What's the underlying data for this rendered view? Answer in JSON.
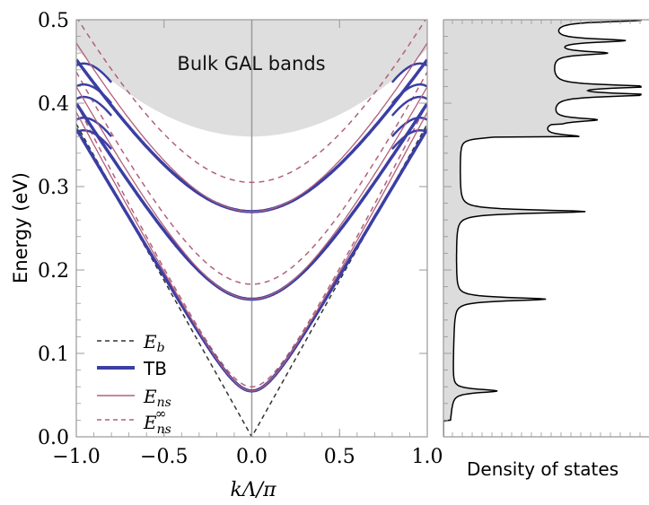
{
  "chart_data": [
    {
      "type": "line",
      "ylabel": "Energy (eV)",
      "xlabel": "kΛ/π",
      "xlim": [
        -1.0,
        1.0
      ],
      "ylim": [
        0.0,
        0.5
      ],
      "x_ticks": [
        "−1.0",
        "−0.5",
        "0.0",
        "0.5",
        "1.0"
      ],
      "y_ticks": [
        "0.0",
        "0.1",
        "0.2",
        "0.3",
        "0.4",
        "0.5"
      ],
      "annotation": "Bulk GAL bands",
      "bulk_band_edge": {
        "at_k0": 0.36,
        "at_k1": 0.465
      },
      "legend": {
        "placement": "bottom-left",
        "entries": [
          {
            "label": "E_b",
            "style": "dashed",
            "color": "#333333"
          },
          {
            "label": "TB",
            "style": "thick-solid",
            "color": "#3b3ea3"
          },
          {
            "label": "E_ns",
            "style": "thin-solid",
            "color": "#b2607a"
          },
          {
            "label": "E_ns^∞",
            "style": "dashed",
            "color": "#b2607a"
          }
        ]
      },
      "series": [
        {
          "name": "E_b",
          "style": "dashed",
          "color": "#333333",
          "x": [
            -1.0,
            0.0,
            1.0
          ],
          "y": [
            0.375,
            0.0,
            0.375
          ]
        },
        {
          "name": "TB",
          "style": "thick-solid",
          "color": "#3b3ea3",
          "min_energies": [
            0.055,
            0.165,
            0.27
          ],
          "edge_energies": [
            0.365,
            0.38,
            0.405,
            0.42,
            0.445
          ]
        },
        {
          "name": "E_ns",
          "style": "thin-solid",
          "color": "#b2607a",
          "min_energies": [
            0.055,
            0.165,
            0.27
          ]
        },
        {
          "name": "E_ns^∞",
          "style": "dashed",
          "color": "#b2607a",
          "min_energies": [
            0.06,
            0.183,
            0.305
          ]
        }
      ]
    },
    {
      "type": "area",
      "xlabel": "Density of states",
      "ylim": [
        0.0,
        0.5
      ],
      "grid": false,
      "fill_color": "#dcdcdc",
      "peaks": [
        0.055,
        0.165,
        0.27,
        0.36,
        0.38,
        0.41,
        0.42,
        0.46,
        0.475,
        0.5
      ]
    }
  ]
}
